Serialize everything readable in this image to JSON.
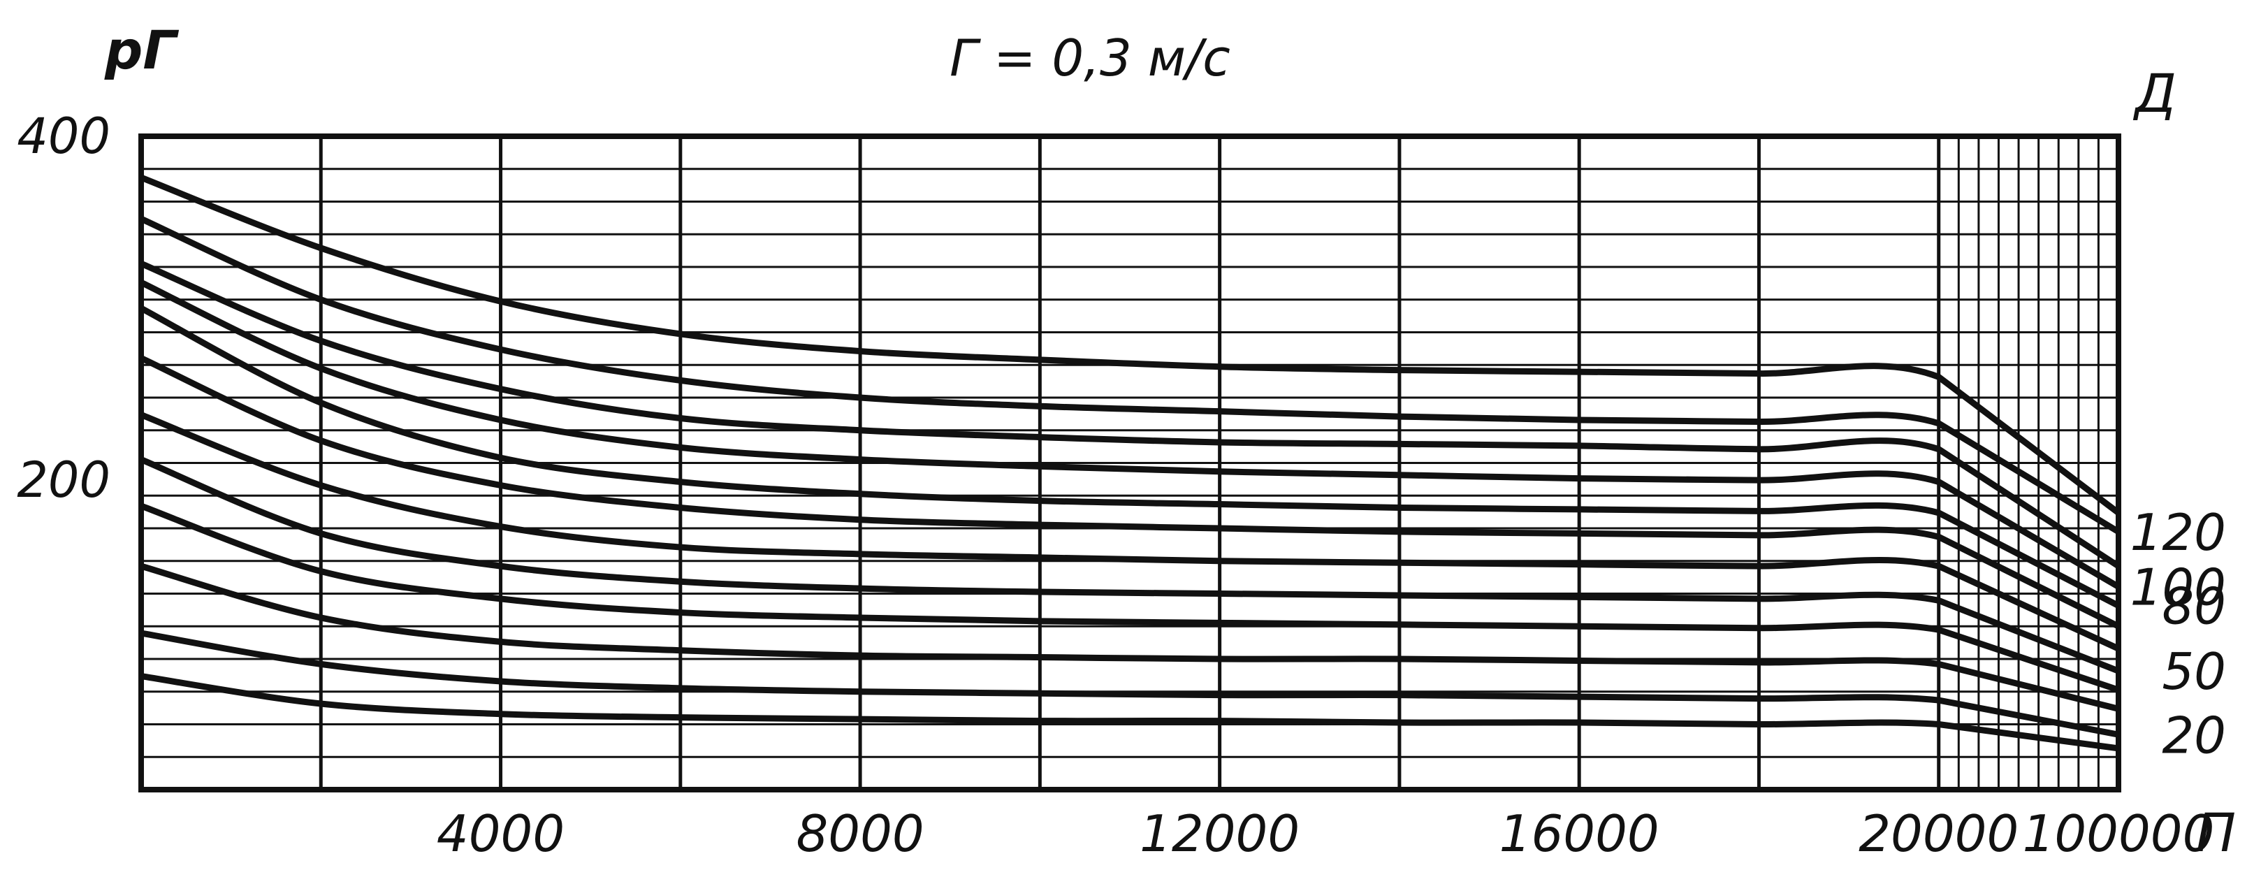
{
  "chart_data": {
    "type": "line",
    "title": "Г = 0,3 м/с",
    "ylabel": "рГ",
    "xlabel": "П",
    "series_axis_label": "Д",
    "ylim": [
      20,
      400
    ],
    "y_ticks": [
      {
        "value": 400,
        "label": "400"
      },
      {
        "value": 200,
        "label": "200"
      }
    ],
    "x_ticks": [
      {
        "value": 4000,
        "label": "4000"
      },
      {
        "value": 8000,
        "label": "8000"
      },
      {
        "value": 12000,
        "label": "12000"
      },
      {
        "value": 16000,
        "label": "16000"
      },
      {
        "value": 20000,
        "label": "20000"
      },
      {
        "value": 100000,
        "label": "100000"
      }
    ],
    "x_breaks": [
      0,
      2000,
      4000,
      6000,
      8000,
      10000,
      12000,
      14000,
      16000,
      18000,
      20000,
      100000
    ],
    "grid": true,
    "series": [
      {
        "name": "",
        "x": [
          0,
          2000,
          4000,
          6000,
          8000,
          10000,
          12000,
          14000,
          16000,
          18000,
          20000,
          100000
        ],
        "y": [
          376,
          335,
          304,
          285,
          275,
          270,
          266,
          264,
          263,
          262,
          260,
          181
        ]
      },
      {
        "name": "120",
        "x": [
          0,
          2000,
          4000,
          6000,
          8000,
          10000,
          12000,
          14000,
          16000,
          18000,
          20000,
          100000
        ],
        "y": [
          352,
          305,
          276,
          258,
          248,
          243,
          240,
          237,
          235,
          234,
          233,
          170
        ]
      },
      {
        "name": "",
        "x": [
          0,
          2000,
          4000,
          6000,
          8000,
          10000,
          12000,
          14000,
          16000,
          18000,
          20000,
          100000
        ],
        "y": [
          326,
          281,
          253,
          236,
          229,
          225,
          222,
          221,
          220,
          218,
          218,
          150
        ]
      },
      {
        "name": "100",
        "x": [
          0,
          2000,
          4000,
          6000,
          8000,
          10000,
          12000,
          14000,
          16000,
          18000,
          20000,
          100000
        ],
        "y": [
          315,
          265,
          235,
          219,
          212,
          208,
          205,
          203,
          201,
          200,
          199,
          138
        ]
      },
      {
        "name": "80",
        "x": [
          0,
          2000,
          4000,
          6000,
          8000,
          10000,
          12000,
          14000,
          16000,
          18000,
          20000,
          100000
        ],
        "y": [
          300,
          245,
          213,
          199,
          192,
          188,
          186,
          184,
          183,
          182,
          181,
          127
        ]
      },
      {
        "name": "",
        "x": [
          0,
          2000,
          4000,
          6000,
          8000,
          10000,
          12000,
          14000,
          16000,
          18000,
          20000,
          100000
        ],
        "y": [
          271,
          223,
          197,
          184,
          177,
          174,
          172,
          170,
          169,
          168,
          167,
          115
        ]
      },
      {
        "name": "",
        "x": [
          0,
          2000,
          4000,
          6000,
          8000,
          10000,
          12000,
          14000,
          16000,
          18000,
          20000,
          100000
        ],
        "y": [
          238,
          197,
          173,
          161,
          157,
          155,
          153,
          152,
          151,
          150,
          150,
          102
        ]
      },
      {
        "name": "50",
        "x": [
          0,
          2000,
          4000,
          6000,
          8000,
          10000,
          12000,
          14000,
          16000,
          18000,
          20000,
          100000
        ],
        "y": [
          212,
          169,
          150,
          141,
          137,
          135,
          134,
          133,
          132,
          131,
          130,
          89
        ]
      },
      {
        "name": "",
        "x": [
          0,
          2000,
          4000,
          6000,
          8000,
          10000,
          12000,
          14000,
          16000,
          18000,
          20000,
          100000
        ],
        "y": [
          185,
          147,
          131,
          123,
          120,
          118,
          117,
          116,
          115,
          114,
          113,
          78
        ]
      },
      {
        "name": "",
        "x": [
          0,
          2000,
          4000,
          6000,
          8000,
          10000,
          12000,
          14000,
          16000,
          18000,
          20000,
          100000
        ],
        "y": [
          150,
          120,
          106,
          101,
          98,
          97,
          96,
          96,
          95,
          94,
          93,
          67
        ]
      },
      {
        "name": "20",
        "x": [
          0,
          2000,
          4000,
          6000,
          8000,
          10000,
          12000,
          14000,
          16000,
          18000,
          20000,
          100000
        ],
        "y": [
          111,
          93,
          83,
          79,
          77,
          76,
          75,
          75,
          74,
          73,
          72,
          52
        ]
      },
      {
        "name": "",
        "x": [
          0,
          2000,
          4000,
          6000,
          8000,
          10000,
          12000,
          14000,
          16000,
          18000,
          20000,
          100000
        ],
        "y": [
          86,
          70,
          64,
          62,
          61,
          60,
          60,
          59,
          59,
          58,
          58,
          44
        ]
      }
    ]
  }
}
